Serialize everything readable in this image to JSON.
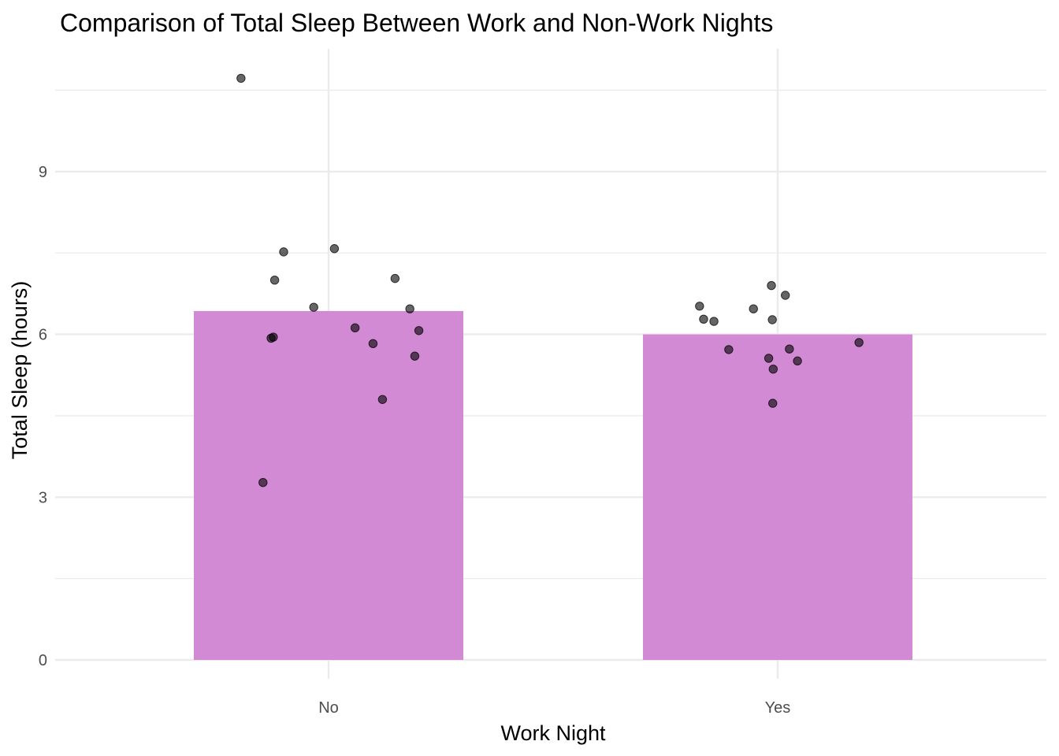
{
  "chart_data": {
    "type": "bar",
    "title": "Comparison of Total Sleep Between Work and Non-Work Nights",
    "xlabel": "Work Night",
    "ylabel": "Total Sleep (hours)",
    "categories": [
      "No",
      "Yes"
    ],
    "values": [
      6.43,
      6.0
    ],
    "bar_color": "#D38AD4",
    "ylim": [
      -0.3,
      11.3
    ],
    "yticks": [
      0,
      3,
      6,
      9
    ],
    "y_minor_ticks": [
      1.5,
      4.5,
      7.5,
      10.5
    ],
    "grid": true,
    "legend": "none",
    "points": [
      {
        "category": "No",
        "jitter": -0.195,
        "y": 10.72
      },
      {
        "category": "No",
        "jitter": -0.1,
        "y": 7.52
      },
      {
        "category": "No",
        "jitter": 0.013,
        "y": 7.58
      },
      {
        "category": "No",
        "jitter": -0.12,
        "y": 7.0
      },
      {
        "category": "No",
        "jitter": 0.148,
        "y": 7.03
      },
      {
        "category": "No",
        "jitter": -0.033,
        "y": 6.5
      },
      {
        "category": "No",
        "jitter": 0.181,
        "y": 6.47
      },
      {
        "category": "No",
        "jitter": 0.059,
        "y": 6.12
      },
      {
        "category": "No",
        "jitter": 0.201,
        "y": 6.07
      },
      {
        "category": "No",
        "jitter": -0.128,
        "y": 5.93
      },
      {
        "category": "No",
        "jitter": -0.123,
        "y": 5.95
      },
      {
        "category": "No",
        "jitter": 0.099,
        "y": 5.83
      },
      {
        "category": "No",
        "jitter": 0.192,
        "y": 5.6
      },
      {
        "category": "No",
        "jitter": 0.12,
        "y": 4.8
      },
      {
        "category": "No",
        "jitter": -0.146,
        "y": 3.27
      },
      {
        "category": "Yes",
        "jitter": -0.014,
        "y": 6.9
      },
      {
        "category": "Yes",
        "jitter": 0.017,
        "y": 6.72
      },
      {
        "category": "Yes",
        "jitter": -0.174,
        "y": 6.52
      },
      {
        "category": "Yes",
        "jitter": -0.054,
        "y": 6.47
      },
      {
        "category": "Yes",
        "jitter": -0.165,
        "y": 6.28
      },
      {
        "category": "Yes",
        "jitter": -0.142,
        "y": 6.24
      },
      {
        "category": "Yes",
        "jitter": -0.012,
        "y": 6.27
      },
      {
        "category": "Yes",
        "jitter": 0.181,
        "y": 5.85
      },
      {
        "category": "Yes",
        "jitter": -0.109,
        "y": 5.72
      },
      {
        "category": "Yes",
        "jitter": 0.026,
        "y": 5.73
      },
      {
        "category": "Yes",
        "jitter": -0.02,
        "y": 5.56
      },
      {
        "category": "Yes",
        "jitter": 0.044,
        "y": 5.51
      },
      {
        "category": "Yes",
        "jitter": -0.01,
        "y": 5.36
      },
      {
        "category": "Yes",
        "jitter": -0.011,
        "y": 4.73
      }
    ]
  }
}
